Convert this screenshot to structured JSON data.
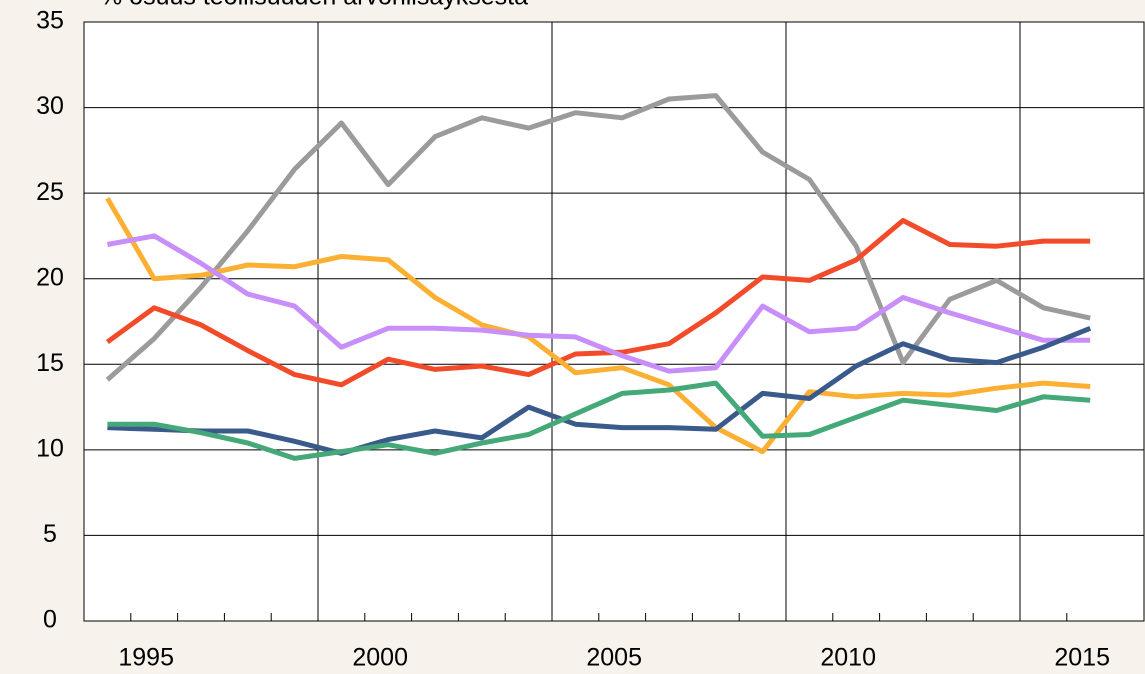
{
  "chart_data": {
    "type": "line",
    "title": "% osuus teollisuuden arvonlisäyksestä",
    "categories": [
      null,
      "1995",
      null,
      null,
      null,
      null,
      "2000",
      null,
      null,
      null,
      null,
      "2005",
      null,
      null,
      null,
      null,
      "2010",
      null,
      null,
      null,
      null,
      "2015"
    ],
    "series": [
      {
        "color": "#9b9b9b",
        "values": [
          14.1,
          16.5,
          19.5,
          22.8,
          26.4,
          29.1,
          25.5,
          28.3,
          29.4,
          28.8,
          29.7,
          29.4,
          30.5,
          30.7,
          27.4,
          25.8,
          21.9,
          15.1,
          18.8,
          19.9,
          18.3,
          17.7
        ]
      },
      {
        "color": "#f24b2a",
        "values": [
          16.3,
          18.3,
          17.3,
          15.8,
          14.4,
          13.8,
          15.3,
          14.7,
          14.9,
          14.4,
          15.6,
          15.7,
          16.2,
          18.0,
          20.1,
          19.9,
          21.1,
          23.4,
          22.0,
          21.9,
          22.2,
          22.2
        ]
      },
      {
        "color": "#fbb034",
        "values": [
          24.7,
          20.0,
          20.2,
          20.8,
          20.7,
          21.3,
          21.1,
          18.9,
          17.3,
          16.6,
          14.5,
          14.8,
          13.8,
          11.3,
          9.9,
          13.4,
          13.1,
          13.3,
          13.2,
          13.6,
          13.9,
          13.7
        ]
      },
      {
        "color": "#c88ffa",
        "values": [
          22.0,
          22.5,
          20.9,
          19.1,
          18.4,
          16.0,
          17.1,
          17.1,
          17.0,
          16.7,
          16.6,
          15.5,
          14.6,
          14.8,
          18.4,
          16.9,
          17.1,
          18.9,
          18.0,
          17.2,
          16.4,
          16.4
        ]
      },
      {
        "color": "#3a5a8c",
        "values": [
          11.3,
          11.2,
          11.1,
          11.1,
          10.5,
          9.8,
          10.6,
          11.1,
          10.7,
          12.5,
          11.5,
          11.3,
          11.3,
          11.2,
          13.3,
          13.0,
          14.9,
          16.2,
          15.3,
          15.1,
          16.0,
          17.1
        ]
      },
      {
        "color": "#44a878",
        "values": [
          11.5,
          11.5,
          11.0,
          10.4,
          9.5,
          9.9,
          10.3,
          9.8,
          10.4,
          10.9,
          12.1,
          13.3,
          13.5,
          13.9,
          10.8,
          10.9,
          11.9,
          12.9,
          12.6,
          12.3,
          13.1,
          12.9
        ]
      }
    ],
    "ylim": [
      0,
      35
    ],
    "yticks": [
      0,
      5,
      10,
      15,
      20,
      25,
      30,
      35
    ],
    "grid": true
  }
}
